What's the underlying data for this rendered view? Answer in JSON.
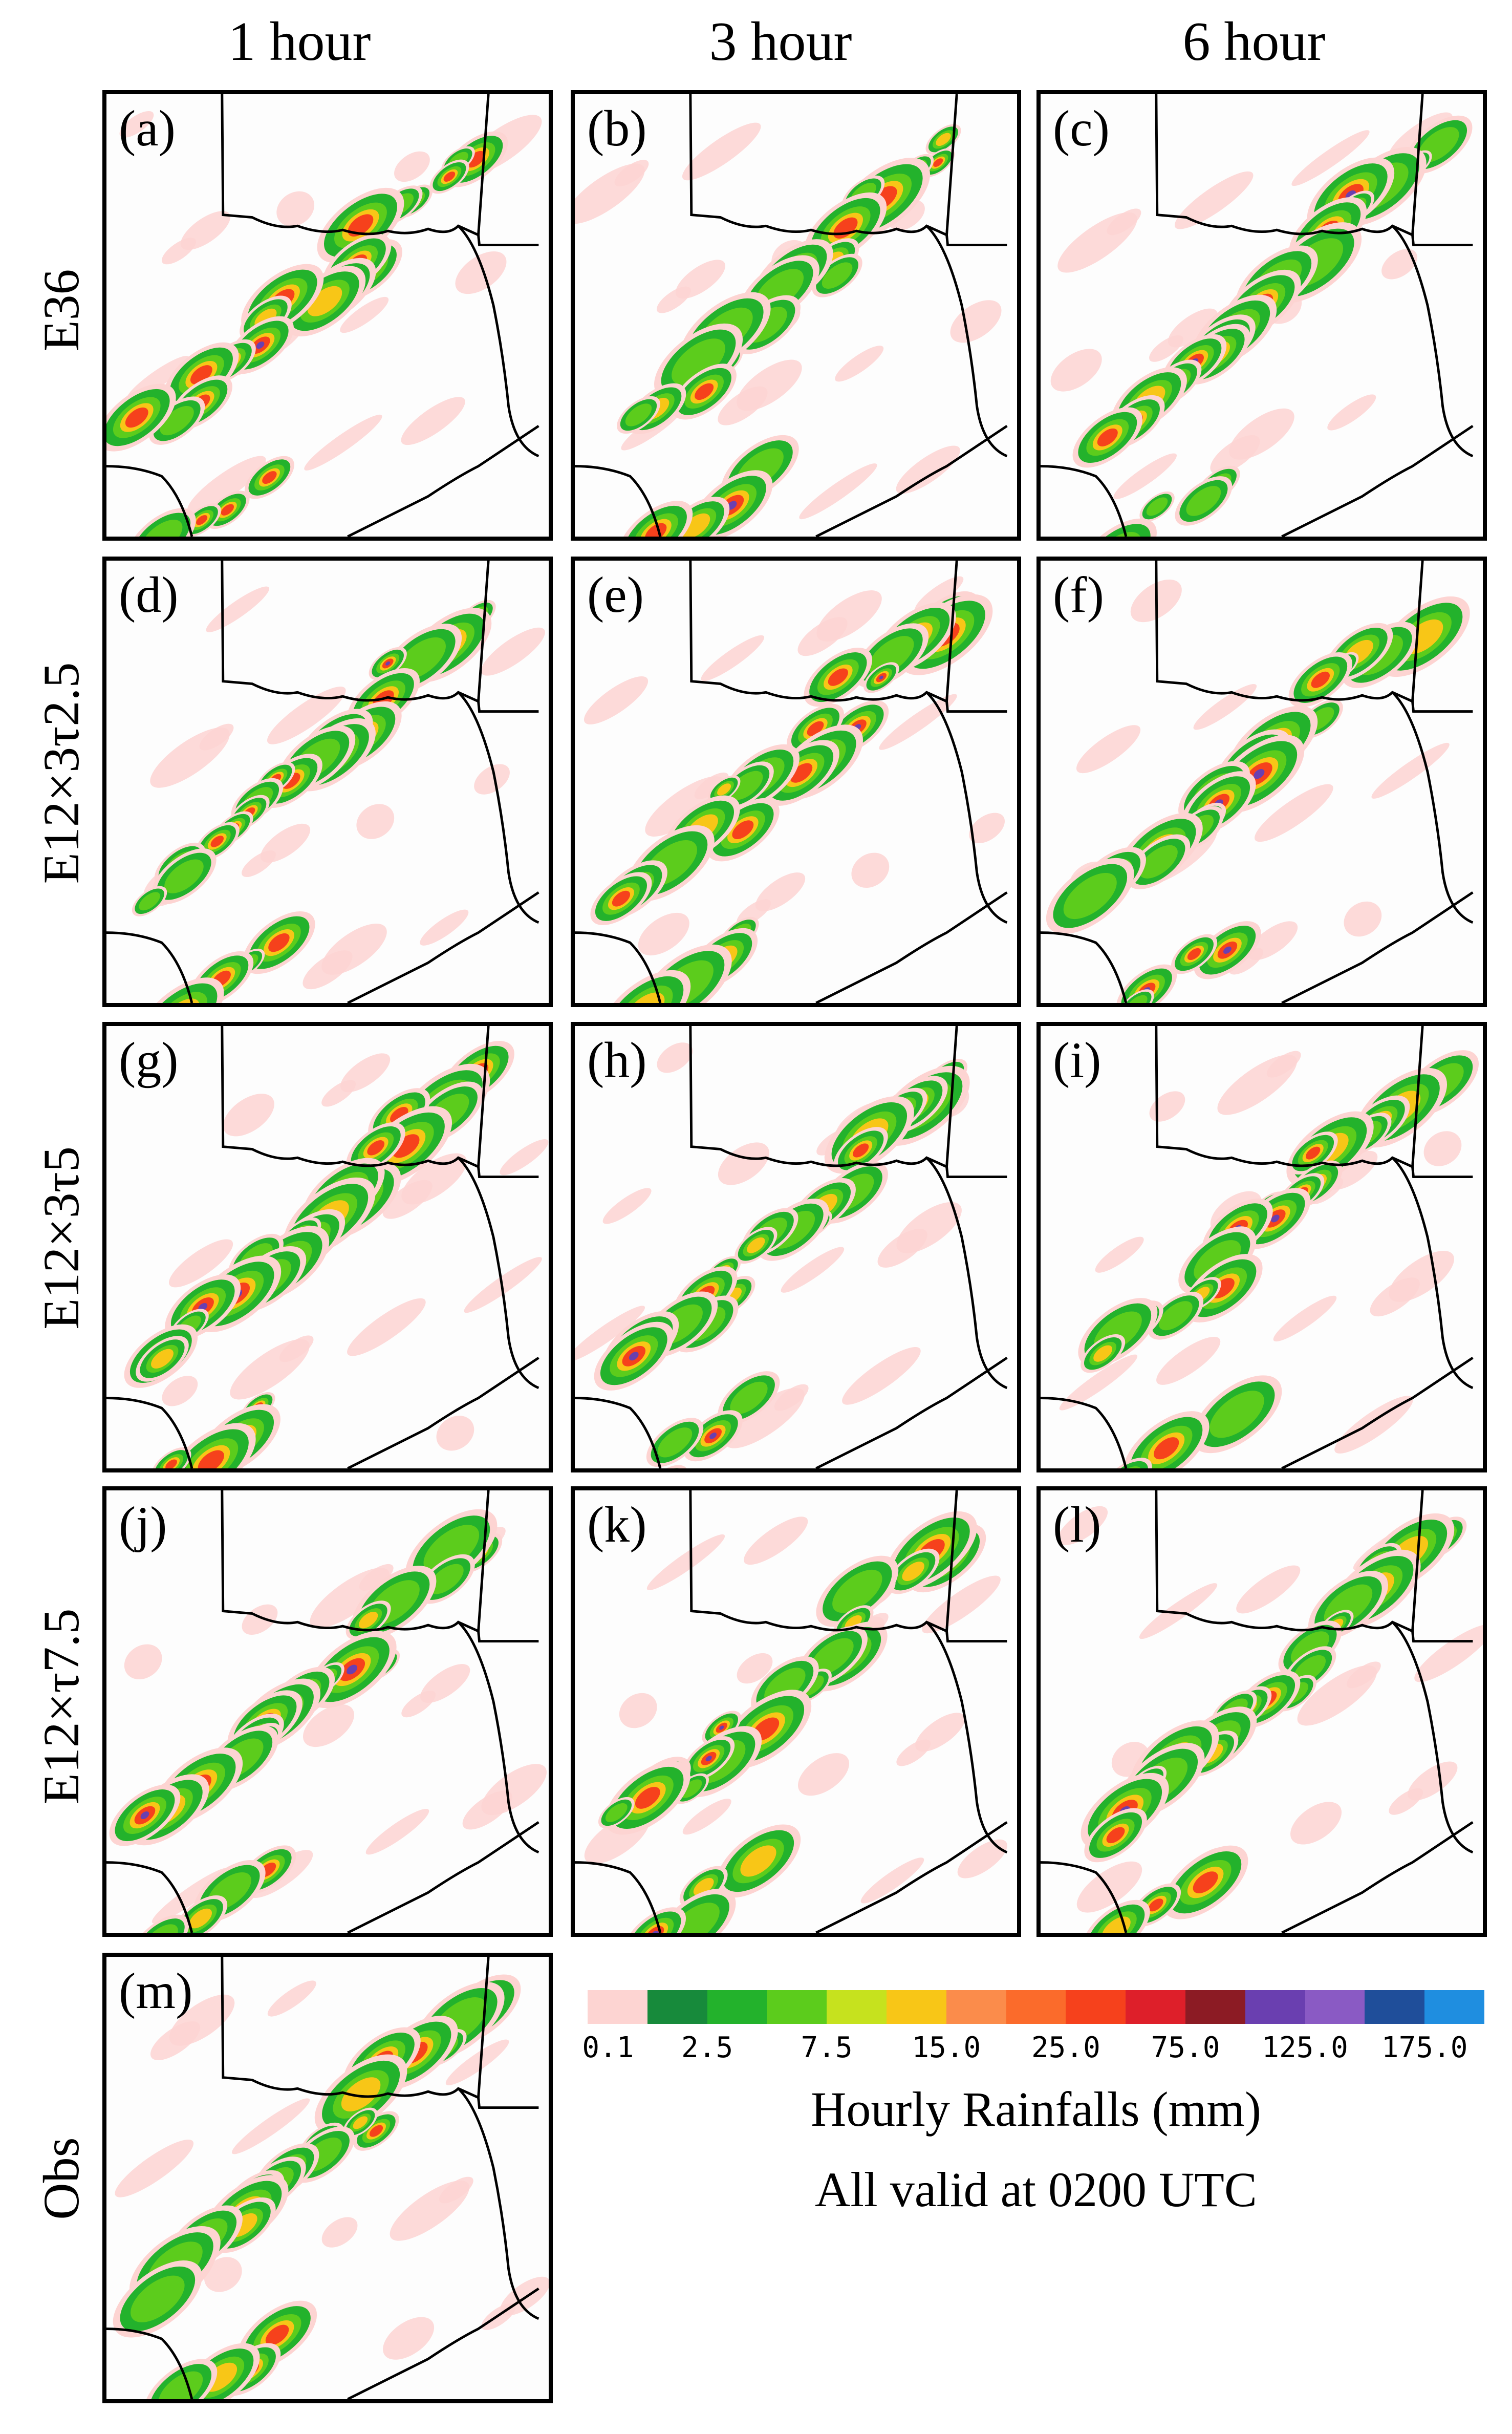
{
  "column_headers": [
    "1 hour",
    "3 hour",
    "6 hour"
  ],
  "row_labels": [
    "E36",
    "E12×3τ2.5",
    "E12×3τ5",
    "E12×τ7.5",
    "Obs"
  ],
  "panels": [
    {
      "label": "(a)",
      "row": "E36",
      "lead": "1 hour"
    },
    {
      "label": "(b)",
      "row": "E36",
      "lead": "3 hour"
    },
    {
      "label": "(c)",
      "row": "E36",
      "lead": "6 hour"
    },
    {
      "label": "(d)",
      "row": "E12×3τ2.5",
      "lead": "1 hour"
    },
    {
      "label": "(e)",
      "row": "E12×3τ2.5",
      "lead": "3 hour"
    },
    {
      "label": "(f)",
      "row": "E12×3τ2.5",
      "lead": "6 hour"
    },
    {
      "label": "(g)",
      "row": "E12×3τ5",
      "lead": "1 hour"
    },
    {
      "label": "(h)",
      "row": "E12×3τ5",
      "lead": "3 hour"
    },
    {
      "label": "(i)",
      "row": "E12×3τ5",
      "lead": "6 hour"
    },
    {
      "label": "(j)",
      "row": "E12×τ7.5",
      "lead": "1 hour"
    },
    {
      "label": "(k)",
      "row": "E12×τ7.5",
      "lead": "3 hour"
    },
    {
      "label": "(l)",
      "row": "E12×τ7.5",
      "lead": "6 hour"
    },
    {
      "label": "(m)",
      "row": "Obs",
      "lead": "1 hour"
    }
  ],
  "colorbar": {
    "colors": [
      "#fdd4d2",
      "#178a3b",
      "#23b22c",
      "#5ccc1c",
      "#c6e21e",
      "#f8c617",
      "#fb8c4b",
      "#fb6b2b",
      "#f6411c",
      "#de1f2a",
      "#8c1b24",
      "#6a3fb0",
      "#8a5ac4",
      "#1f4e9a",
      "#1f8ee0"
    ],
    "tick_labels": [
      "0.1",
      "2.5",
      "7.5",
      "15.0",
      "25.0",
      "75.0",
      "125.0",
      "175.0"
    ],
    "title": "Hourly Rainfalls (mm)",
    "subtitle": "All valid at 0200 UTC"
  }
}
